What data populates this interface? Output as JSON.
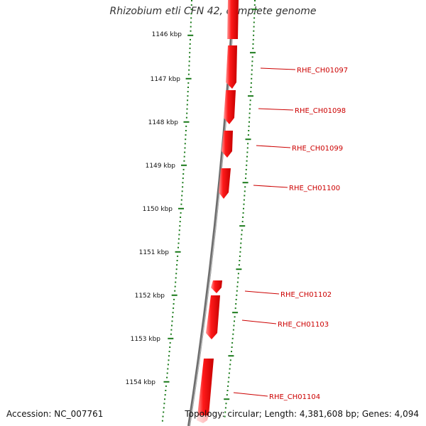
{
  "title": "Rhizobium etli CFN 42, complete genome",
  "accession": "Accession: NC_007761",
  "summary": "Topology: circular; Length: 4,381,608 bp; Genes: 4,094",
  "colors": {
    "backbone": "#808080",
    "ticks": "#1a7a1a",
    "gene": "#ee0000",
    "label": "#cc0000"
  },
  "kbp_labels": [
    "1146 kbp",
    "1147 kbp",
    "1148 kbp",
    "1149 kbp",
    "1150 kbp",
    "1151 kbp",
    "1152 kbp",
    "1153 kbp",
    "1154 kbp"
  ],
  "gene_labels": [
    "RHE_CH01097",
    "RHE_CH01098",
    "RHE_CH01099",
    "RHE_CH01100",
    "RHE_CH01102",
    "RHE_CH01103",
    "RHE_CH01104"
  ]
}
